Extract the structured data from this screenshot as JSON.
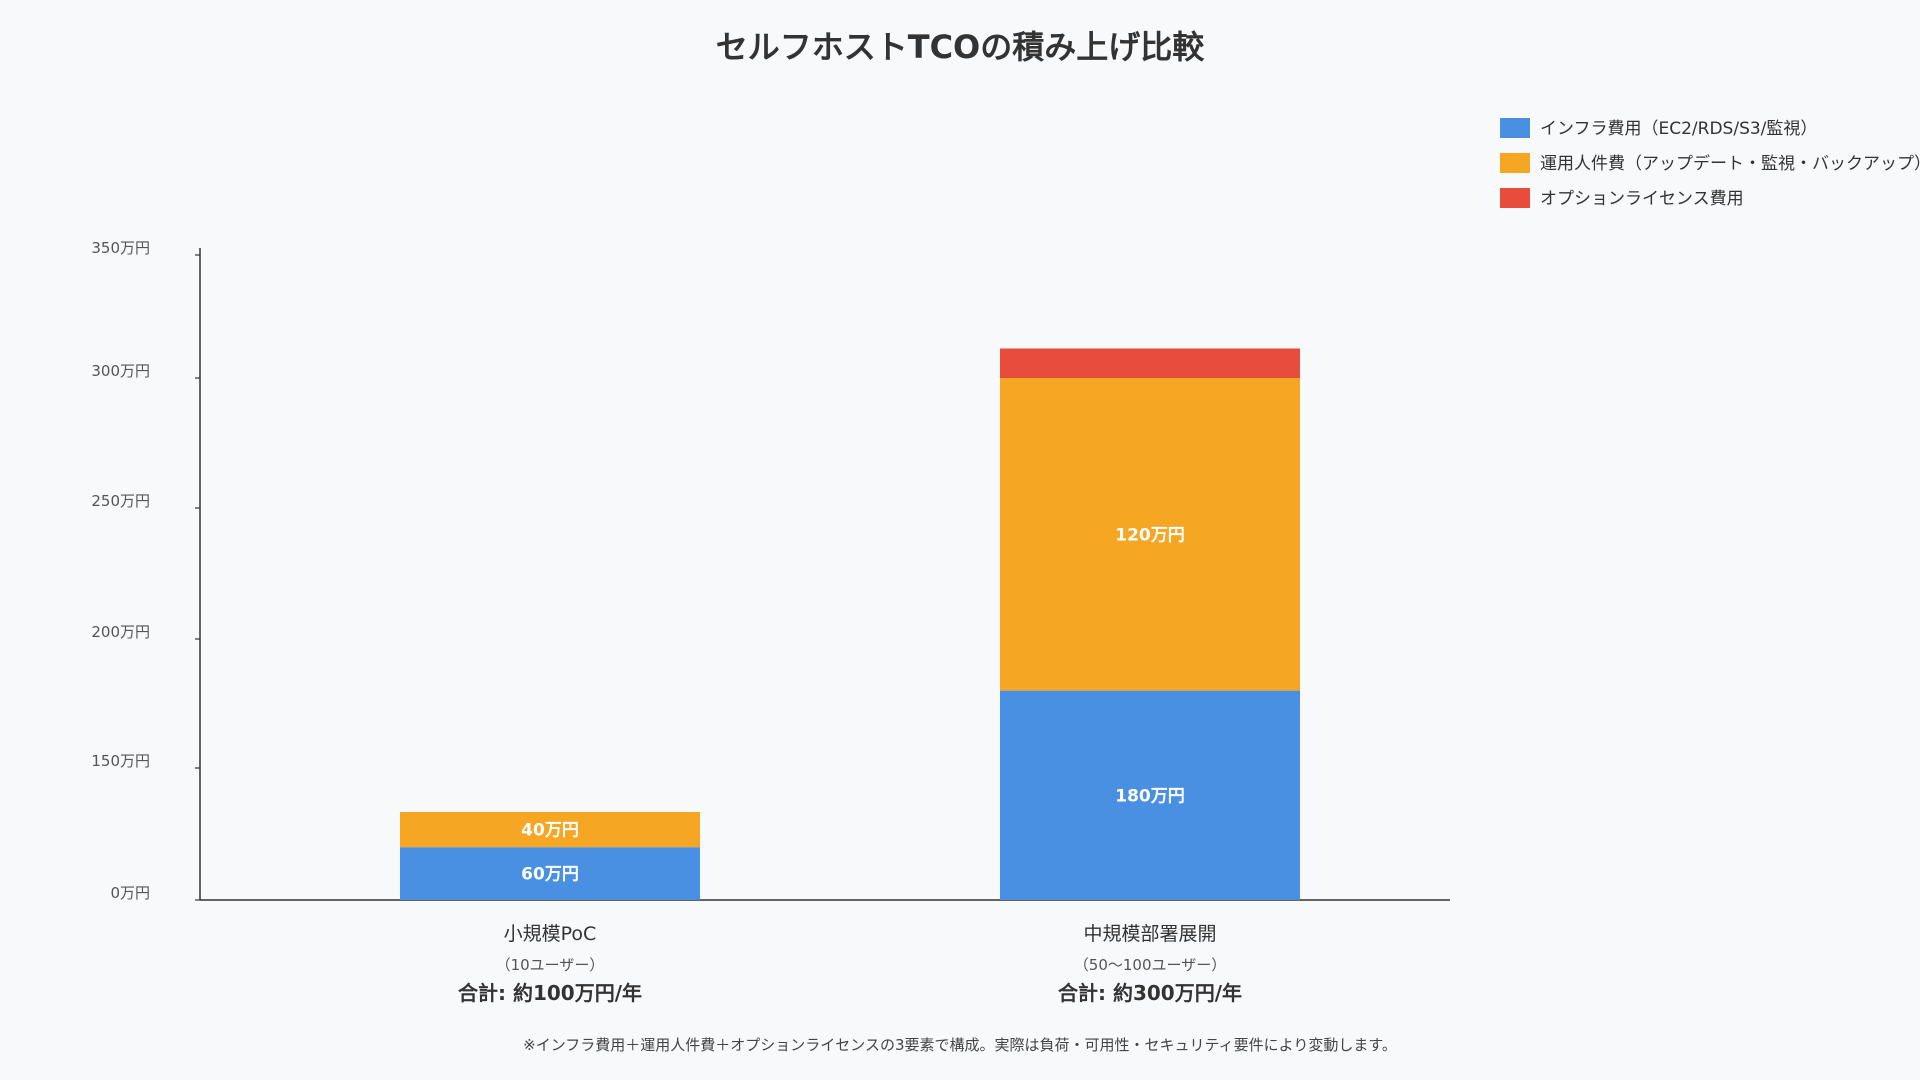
{
  "chart_data": {
    "type": "bar",
    "stacked": true,
    "title": "セルフホストTCOの積み上げ比較",
    "categories": [
      "小規模PoC",
      "中規模部署展開"
    ],
    "category_subtitles": [
      "（10ユーザー）",
      "（50〜100ユーザー）"
    ],
    "category_totals": [
      "合計: 約100万円/年",
      "合計: 約300万円/年"
    ],
    "series": [
      {
        "name": "インフラ費用（EC2/RDS/S3/監視）",
        "color": "#4a90e2",
        "values": [
          60,
          180
        ],
        "value_labels": [
          "60万円",
          "180万円"
        ]
      },
      {
        "name": "運用人件費（アップデート・監視・バックアップ）",
        "color": "#f5a623",
        "values": [
          40,
          120
        ],
        "value_labels": [
          "40万円",
          "120万円"
        ]
      },
      {
        "name": "オプションライセンス費用",
        "color": "#e84c3d",
        "values": [
          0,
          12
        ],
        "value_labels": [
          "",
          ""
        ]
      }
    ],
    "y_ticks": [
      0,
      150,
      200,
      250,
      300,
      350
    ],
    "y_tick_labels": [
      "0万円",
      "150万円",
      "200万円",
      "250万円",
      "300万円",
      "350万円"
    ],
    "legend_position": "top-right",
    "grid": false,
    "footnote": "※インフラ費用＋運用人件費＋オプションライセンスの3要素で構成。実際は負荷・可用性・セキュリティ要件により変動します。"
  }
}
